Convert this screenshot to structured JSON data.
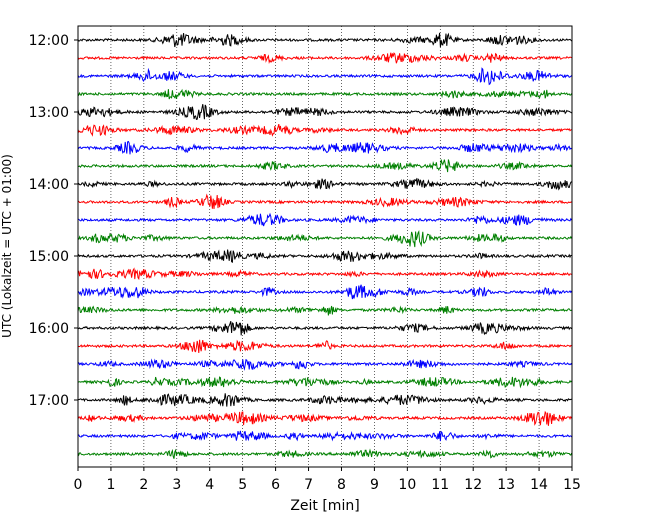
{
  "chart_data": {
    "type": "line",
    "title": "",
    "xlabel": "Zeit  [min]",
    "ylabel": "UTC (Lokalzeit = UTC + 01:00)",
    "xlim": [
      0,
      15
    ],
    "x_ticks": [
      0,
      1,
      2,
      3,
      4,
      5,
      6,
      7,
      8,
      9,
      10,
      11,
      12,
      13,
      14,
      15
    ],
    "x_tick_labels": [
      "0",
      "1",
      "2",
      "3",
      "4",
      "5",
      "6",
      "7",
      "8",
      "9",
      "10",
      "11",
      "12",
      "13",
      "14",
      "15"
    ],
    "y_ticks": [
      "12:00",
      "13:00",
      "14:00",
      "15:00",
      "16:00",
      "17:00"
    ],
    "trace_interval_minutes": 15,
    "trace_colors": [
      "#000000",
      "#ff0000",
      "#0000ff",
      "#008000"
    ],
    "grid": "vertical-dotted",
    "traces": [
      {
        "start": "12:00",
        "color": "#000000"
      },
      {
        "start": "12:15",
        "color": "#ff0000"
      },
      {
        "start": "12:30",
        "color": "#0000ff"
      },
      {
        "start": "12:45",
        "color": "#008000"
      },
      {
        "start": "13:00",
        "color": "#000000"
      },
      {
        "start": "13:15",
        "color": "#ff0000"
      },
      {
        "start": "13:30",
        "color": "#0000ff"
      },
      {
        "start": "13:45",
        "color": "#008000"
      },
      {
        "start": "14:00",
        "color": "#000000"
      },
      {
        "start": "14:15",
        "color": "#ff0000"
      },
      {
        "start": "14:30",
        "color": "#0000ff"
      },
      {
        "start": "14:45",
        "color": "#008000"
      },
      {
        "start": "15:00",
        "color": "#000000"
      },
      {
        "start": "15:15",
        "color": "#ff0000"
      },
      {
        "start": "15:30",
        "color": "#0000ff"
      },
      {
        "start": "15:45",
        "color": "#008000"
      },
      {
        "start": "16:00",
        "color": "#000000"
      },
      {
        "start": "16:15",
        "color": "#ff0000"
      },
      {
        "start": "16:30",
        "color": "#0000ff"
      },
      {
        "start": "16:45",
        "color": "#008000"
      },
      {
        "start": "17:00",
        "color": "#000000"
      },
      {
        "start": "17:15",
        "color": "#ff0000"
      },
      {
        "start": "17:30",
        "color": "#0000ff"
      },
      {
        "start": "17:45",
        "color": "#008000"
      }
    ]
  }
}
